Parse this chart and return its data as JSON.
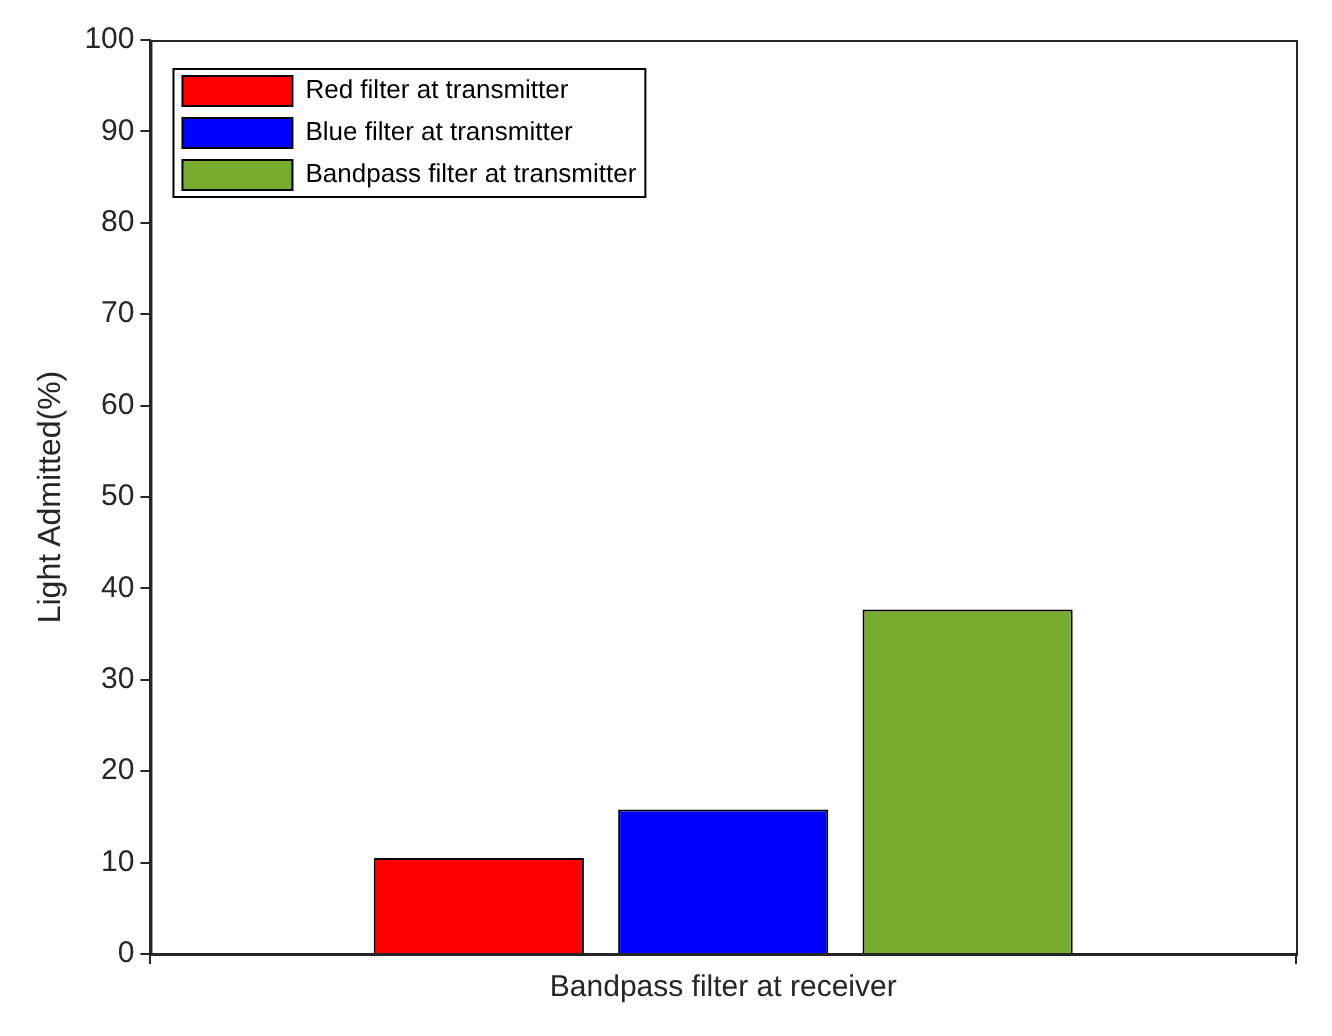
{
  "chart_data": {
    "type": "bar",
    "ylabel": "Light Admitted(%)",
    "categories": [
      "Bandpass filter at receiver"
    ],
    "series": [
      {
        "name": "Red filter at transmitter",
        "color": "#ff0000",
        "values": [
          10.5
        ]
      },
      {
        "name": "Blue filter at transmitter",
        "color": "#0000ff",
        "values": [
          15.8
        ]
      },
      {
        "name": "Bandpass filter at transmitter",
        "color": "#77ac30",
        "values": [
          37.7
        ]
      }
    ],
    "ylim": [
      0,
      100
    ],
    "yticks": [
      0,
      10,
      20,
      30,
      40,
      50,
      60,
      70,
      80,
      90,
      100
    ],
    "grid": false,
    "legend": "top left"
  }
}
